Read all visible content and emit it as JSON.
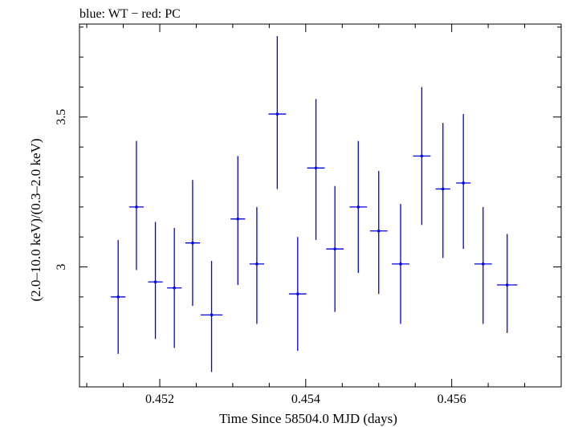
{
  "chart_data": {
    "type": "scatter",
    "title": "blue: WT − red: PC",
    "xlabel": "Time Since 58504.0 MJD (days)",
    "ylabel": "(2.0–10.0 keV)/(0.3–2.0 keV)",
    "xlim": [
      0.4509,
      0.4575
    ],
    "ylim": [
      2.6,
      3.81
    ],
    "x_ticks": [
      {
        "value": 0.452,
        "label": "0.452"
      },
      {
        "value": 0.454,
        "label": "0.454"
      },
      {
        "value": 0.456,
        "label": "0.456"
      }
    ],
    "y_ticks": [
      {
        "value": 3.0,
        "label": "3"
      },
      {
        "value": 3.5,
        "label": "3.5"
      }
    ],
    "grid": false,
    "series": [
      {
        "color": "#0000e0",
        "points": [
          {
            "x": 0.45143,
            "xerr": 0.0001,
            "y": 2.9,
            "ylo": 2.71,
            "yhi": 3.09
          },
          {
            "x": 0.45168,
            "xerr": 0.0001,
            "y": 3.2,
            "ylo": 2.99,
            "yhi": 3.42
          },
          {
            "x": 0.45194,
            "xerr": 0.0001,
            "y": 2.95,
            "ylo": 2.76,
            "yhi": 3.15
          },
          {
            "x": 0.4522,
            "xerr": 0.0001,
            "y": 2.93,
            "ylo": 2.73,
            "yhi": 3.13
          },
          {
            "x": 0.45245,
            "xerr": 0.0001,
            "y": 3.08,
            "ylo": 2.87,
            "yhi": 3.29
          },
          {
            "x": 0.45271,
            "xerr": 0.00015,
            "y": 2.84,
            "ylo": 2.65,
            "yhi": 3.02
          },
          {
            "x": 0.45307,
            "xerr": 0.0001,
            "y": 3.16,
            "ylo": 2.94,
            "yhi": 3.37
          },
          {
            "x": 0.45333,
            "xerr": 0.0001,
            "y": 3.01,
            "ylo": 2.81,
            "yhi": 3.2
          },
          {
            "x": 0.45361,
            "xerr": 0.00012,
            "y": 3.51,
            "ylo": 3.26,
            "yhi": 3.77
          },
          {
            "x": 0.45389,
            "xerr": 0.00012,
            "y": 2.91,
            "ylo": 2.72,
            "yhi": 3.1
          },
          {
            "x": 0.45414,
            "xerr": 0.00012,
            "y": 3.33,
            "ylo": 3.09,
            "yhi": 3.56
          },
          {
            "x": 0.4544,
            "xerr": 0.00012,
            "y": 3.06,
            "ylo": 2.85,
            "yhi": 3.27
          },
          {
            "x": 0.45472,
            "xerr": 0.00012,
            "y": 3.2,
            "ylo": 2.98,
            "yhi": 3.42
          },
          {
            "x": 0.455,
            "xerr": 0.00012,
            "y": 3.12,
            "ylo": 2.91,
            "yhi": 3.32
          },
          {
            "x": 0.4553,
            "xerr": 0.00012,
            "y": 3.01,
            "ylo": 2.81,
            "yhi": 3.21
          },
          {
            "x": 0.45559,
            "xerr": 0.00012,
            "y": 3.37,
            "ylo": 3.14,
            "yhi": 3.6
          },
          {
            "x": 0.45588,
            "xerr": 0.0001,
            "y": 3.26,
            "ylo": 3.03,
            "yhi": 3.48
          },
          {
            "x": 0.45616,
            "xerr": 0.0001,
            "y": 3.28,
            "ylo": 3.06,
            "yhi": 3.51
          },
          {
            "x": 0.45643,
            "xerr": 0.00012,
            "y": 3.01,
            "ylo": 2.81,
            "yhi": 3.2
          },
          {
            "x": 0.45676,
            "xerr": 0.00014,
            "y": 2.94,
            "ylo": 2.78,
            "yhi": 3.11
          }
        ]
      }
    ]
  }
}
